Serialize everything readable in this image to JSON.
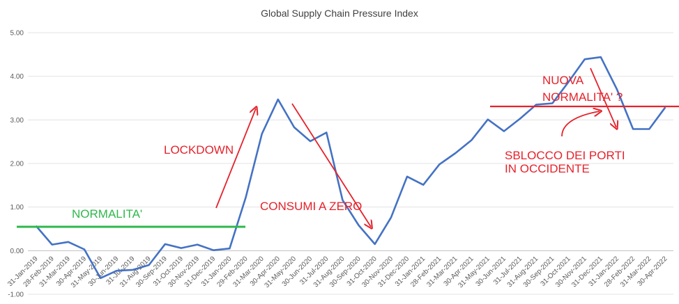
{
  "chart_data": {
    "type": "line",
    "title": "Global Supply Chain Pressure Index",
    "xlabel": "",
    "ylabel": "",
    "ylim": [
      -1,
      5
    ],
    "grid": true,
    "series_color": "#4472c4",
    "y_ticks": [
      "-1.00",
      "0.00",
      "1.00",
      "2.00",
      "3.00",
      "4.00",
      "5.00"
    ],
    "categories": [
      "31-Jan-2019",
      "28-Feb-2019",
      "31-Mar-2019",
      "30-Apr-2019",
      "31-May-2019",
      "30-Jun-2019",
      "31-Jul-2019",
      "31-Aug-2019",
      "30-Sep-2019",
      "31-Oct-2019",
      "30-Nov-2019",
      "31-Dec-2019",
      "31-Jan-2020",
      "29-Feb-2020",
      "31-Mar-2020",
      "30-Apr-2020",
      "31-May-2020",
      "30-Jun-2020",
      "31-Jul-2020",
      "31-Aug-2020",
      "30-Sep-2020",
      "31-Oct-2020",
      "30-Nov-2020",
      "31-Dec-2020",
      "31-Jan-2021",
      "28-Feb-2021",
      "31-Mar-2021",
      "30-Apr-2021",
      "31-May-2021",
      "30-Jun-2021",
      "31-Jul-2021",
      "31-Aug-2021",
      "30-Sep-2021",
      "31-Oct-2021",
      "30-Nov-2021",
      "31-Dec-2021",
      "31-Jan-2022",
      "28-Feb-2022",
      "31-Mar-2022",
      "30-Apr-2022"
    ],
    "values": [
      0.57,
      0.14,
      0.2,
      0.03,
      -0.63,
      -0.46,
      -0.44,
      -0.33,
      0.15,
      0.06,
      0.14,
      0.01,
      0.05,
      1.22,
      2.68,
      3.47,
      2.83,
      2.51,
      2.71,
      1.16,
      0.58,
      0.15,
      0.76,
      1.7,
      1.51,
      1.98,
      2.24,
      2.54,
      3.01,
      2.74,
      3.03,
      3.35,
      3.38,
      3.87,
      4.39,
      4.44,
      3.7,
      2.79,
      2.79,
      3.29
    ]
  },
  "annotations": {
    "normalita": "NORMALITA'",
    "lockdown": "LOCKDOWN",
    "consumi": "CONSUMI A ZERO",
    "nuova_line1": "NUOVA",
    "nuova_line2": "NORMALITA' ?",
    "sblocco_line1": "SBLOCCO DEI PORTI",
    "sblocco_line2": "IN OCCIDENTE",
    "green_color": "#2eb84b",
    "red_color": "#e5222b"
  }
}
